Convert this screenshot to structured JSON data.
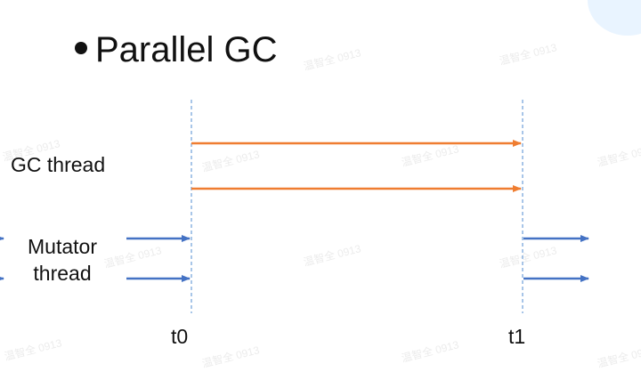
{
  "title": "Parallel GC",
  "labels": {
    "gc_thread": "GC thread",
    "mutator_thread": "Mutator\nthread"
  },
  "ticks": {
    "t0": "t0",
    "t1": "t1"
  },
  "watermark": "温智全 0913",
  "colors": {
    "gc_arrow": "#ef7d31",
    "mutator_arrow": "#4472c4",
    "guide_line": "#6f9fd8",
    "text": "#111111"
  }
}
